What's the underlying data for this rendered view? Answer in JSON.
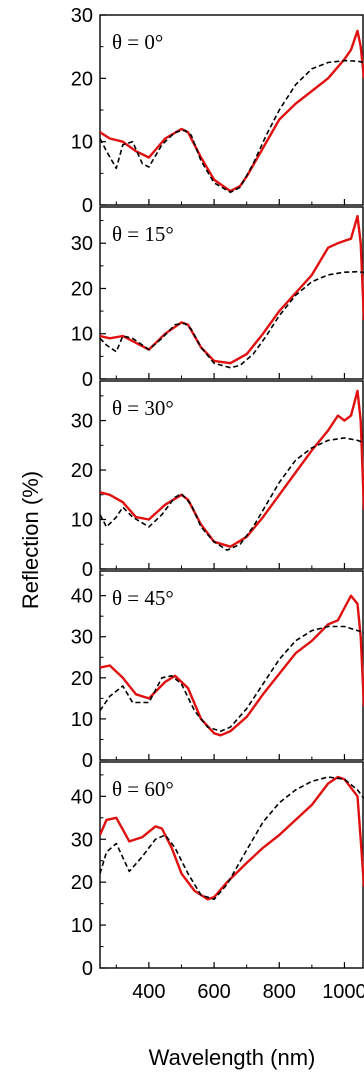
{
  "chart_data": {
    "type": "line",
    "layout": "5 vertically stacked panels sharing one x axis",
    "xlabel": "Wavelength (nm)",
    "ylabel": "Reflection (%)",
    "xlim": [
      250,
      1060
    ],
    "xticks": [
      400,
      600,
      800,
      1000
    ],
    "colors": {
      "measured": "#e01010",
      "simulated": "#000000"
    },
    "line_styles": {
      "measured": "solid",
      "simulated": "dashed"
    },
    "grid": false,
    "legend": "none",
    "panels": [
      {
        "annotation": "θ = 0°",
        "ylim": [
          0,
          30
        ],
        "yticks": [
          0,
          10,
          20,
          30
        ],
        "series": [
          {
            "style": "measured",
            "x": [
              250,
              280,
              320,
              360,
              400,
              450,
              500,
              520,
              560,
              600,
              650,
              680,
              700,
              750,
              800,
              850,
              900,
              950,
              1000,
              1020,
              1040,
              1050,
              1060
            ],
            "y": [
              11.5,
              10.5,
              10.0,
              8.5,
              7.5,
              10.5,
              12.0,
              11.5,
              7.5,
              4.0,
              2.2,
              3.0,
              4.5,
              9.0,
              13.5,
              16.0,
              18.0,
              20.0,
              23.0,
              24.5,
              27.5,
              25.0,
              20.0
            ]
          },
          {
            "style": "simulated",
            "x": [
              250,
              270,
              300,
              320,
              350,
              380,
              400,
              440,
              480,
              510,
              530,
              560,
              600,
              650,
              680,
              720,
              760,
              800,
              850,
              900,
              950,
              1000,
              1040,
              1060
            ],
            "y": [
              10.5,
              8.5,
              5.8,
              9.5,
              10.0,
              6.5,
              6.0,
              9.5,
              11.5,
              11.8,
              11.0,
              7.0,
              3.5,
              2.0,
              2.8,
              6.5,
              11.0,
              15.0,
              19.0,
              21.5,
              22.5,
              22.8,
              22.7,
              22.5
            ]
          }
        ]
      },
      {
        "annotation": "θ = 15°",
        "ylim": [
          0,
          38
        ],
        "yticks": [
          0,
          10,
          20,
          30
        ],
        "series": [
          {
            "style": "measured",
            "x": [
              250,
              280,
              320,
              360,
              400,
              450,
              500,
              520,
              560,
              600,
              650,
              700,
              750,
              800,
              850,
              900,
              950,
              980,
              1000,
              1020,
              1040,
              1050,
              1060
            ],
            "y": [
              9.5,
              9.0,
              9.5,
              8.0,
              6.5,
              10.0,
              12.5,
              12.0,
              7.0,
              4.0,
              3.5,
              5.5,
              10.0,
              15.0,
              19.0,
              23.0,
              29.0,
              30.0,
              30.5,
              31.0,
              36.0,
              30.0,
              13.0
            ]
          },
          {
            "style": "simulated",
            "x": [
              250,
              270,
              300,
              320,
              350,
              400,
              440,
              480,
              510,
              530,
              560,
              600,
              650,
              680,
              720,
              760,
              800,
              850,
              900,
              950,
              1000,
              1040,
              1060
            ],
            "y": [
              9.0,
              7.5,
              6.0,
              9.5,
              9.0,
              6.5,
              9.0,
              12.0,
              12.3,
              11.0,
              7.0,
              3.5,
              2.5,
              3.0,
              5.5,
              9.5,
              14.0,
              18.5,
              21.5,
              23.0,
              23.6,
              23.7,
              23.5
            ]
          }
        ]
      },
      {
        "annotation": "θ = 30°",
        "ylim": [
          0,
          38
        ],
        "yticks": [
          0,
          10,
          20,
          30
        ],
        "series": [
          {
            "style": "measured",
            "x": [
              250,
              280,
              320,
              360,
              400,
              450,
              500,
              520,
              560,
              600,
              650,
              700,
              750,
              800,
              850,
              900,
              950,
              980,
              1000,
              1020,
              1040,
              1050,
              1060
            ],
            "y": [
              15.5,
              15.0,
              13.5,
              10.5,
              10.0,
              13.0,
              15.0,
              14.0,
              9.0,
              5.5,
              4.5,
              6.5,
              10.5,
              15.0,
              19.5,
              24.0,
              28.0,
              31.0,
              30.0,
              31.0,
              36.0,
              30.0,
              12.0
            ]
          },
          {
            "style": "simulated",
            "x": [
              250,
              270,
              300,
              320,
              350,
              400,
              440,
              480,
              500,
              530,
              560,
              600,
              640,
              680,
              720,
              760,
              800,
              850,
              900,
              950,
              1000,
              1040,
              1060
            ],
            "y": [
              11.0,
              8.5,
              10.5,
              12.5,
              10.5,
              8.5,
              11.0,
              14.5,
              15.2,
              13.0,
              8.5,
              5.5,
              3.8,
              5.0,
              8.5,
              13.0,
              17.5,
              22.0,
              24.5,
              26.0,
              26.5,
              26.0,
              25.5
            ]
          }
        ]
      },
      {
        "annotation": "θ = 45°",
        "ylim": [
          0,
          46
        ],
        "yticks": [
          0,
          10,
          20,
          30,
          40
        ],
        "series": [
          {
            "style": "measured",
            "x": [
              250,
              280,
              320,
              360,
              400,
              450,
              480,
              520,
              560,
              600,
              620,
              650,
              700,
              750,
              800,
              850,
              900,
              950,
              980,
              1000,
              1020,
              1040,
              1050,
              1060
            ],
            "y": [
              22.5,
              23.0,
              20.0,
              16.0,
              15.0,
              19.0,
              20.5,
              17.5,
              10.0,
              6.5,
              6.0,
              7.0,
              10.5,
              16.0,
              21.0,
              26.0,
              29.0,
              33.0,
              34.0,
              37.0,
              40.0,
              38.0,
              30.0,
              13.0
            ]
          },
          {
            "style": "simulated",
            "x": [
              250,
              280,
              320,
              350,
              400,
              440,
              470,
              500,
              540,
              580,
              620,
              650,
              700,
              750,
              800,
              850,
              900,
              950,
              1000,
              1040,
              1060
            ],
            "y": [
              12.0,
              15.5,
              18.0,
              14.0,
              14.0,
              20.0,
              20.5,
              18.5,
              12.0,
              8.0,
              7.0,
              8.0,
              12.5,
              18.5,
              24.5,
              29.0,
              31.5,
              32.5,
              32.5,
              31.5,
              31.0
            ]
          }
        ]
      },
      {
        "annotation": "θ = 60°",
        "ylim": [
          0,
          48
        ],
        "yticks": [
          0,
          10,
          20,
          30,
          40
        ],
        "series": [
          {
            "style": "measured",
            "x": [
              250,
              270,
              300,
              340,
              380,
              420,
              440,
              470,
              500,
              540,
              580,
              600,
              640,
              700,
              750,
              800,
              850,
              900,
              950,
              980,
              1000,
              1020,
              1040,
              1050,
              1060
            ],
            "y": [
              31.0,
              34.5,
              35.0,
              29.5,
              30.5,
              33.0,
              32.5,
              28.0,
              22.0,
              18.0,
              16.0,
              16.5,
              20.0,
              24.5,
              28.0,
              31.0,
              34.5,
              38.0,
              43.0,
              44.5,
              44.0,
              42.0,
              40.0,
              30.0,
              19.0
            ]
          },
          {
            "style": "simulated",
            "x": [
              250,
              270,
              300,
              340,
              380,
              420,
              450,
              480,
              520,
              560,
              600,
              640,
              700,
              750,
              800,
              850,
              900,
              950,
              1000,
              1040,
              1060
            ],
            "y": [
              22.0,
              27.0,
              29.0,
              22.5,
              26.0,
              30.0,
              31.0,
              28.0,
              22.0,
              17.0,
              16.0,
              19.5,
              27.5,
              34.0,
              38.5,
              41.5,
              43.5,
              44.5,
              44.0,
              41.5,
              39.5
            ]
          }
        ]
      }
    ]
  }
}
